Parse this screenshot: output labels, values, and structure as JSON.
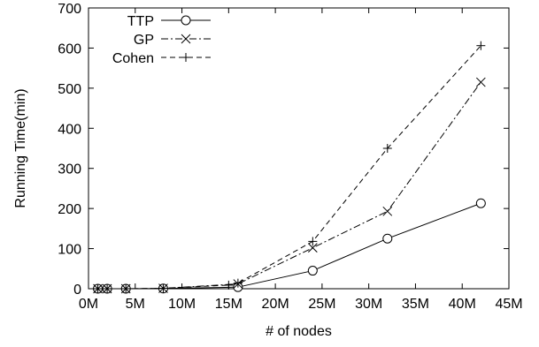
{
  "chart_data": {
    "type": "line",
    "xlabel": "# of nodes",
    "ylabel": "Running Time(min)",
    "xlim": [
      0,
      45
    ],
    "ylim": [
      0,
      700
    ],
    "x_unit": "M",
    "xticks": [
      "0M",
      "5M",
      "10M",
      "15M",
      "20M",
      "25M",
      "30M",
      "35M",
      "40M",
      "45M"
    ],
    "yticks": [
      "0",
      "100",
      "200",
      "300",
      "400",
      "500",
      "600",
      "700"
    ],
    "grid": false,
    "legend_position": "top-left",
    "series": [
      {
        "name": "TTP",
        "marker": "circle",
        "line_style": "solid",
        "x": [
          1,
          2,
          4,
          8,
          16,
          24,
          32,
          42
        ],
        "y": [
          0,
          0,
          0,
          0.5,
          4,
          45,
          125,
          213
        ]
      },
      {
        "name": "GP",
        "marker": "x",
        "line_style": "dash-dot",
        "x": [
          1,
          2,
          4,
          8,
          16,
          24,
          32,
          42
        ],
        "y": [
          0,
          0,
          0,
          1,
          12,
          102,
          193,
          515
        ]
      },
      {
        "name": "Cohen",
        "marker": "plus",
        "line_style": "dashed",
        "x": [
          1,
          2,
          4,
          8,
          15,
          16,
          24,
          32,
          42
        ],
        "y": [
          0,
          0,
          0,
          1,
          9,
          14,
          118,
          350,
          606
        ]
      }
    ]
  }
}
